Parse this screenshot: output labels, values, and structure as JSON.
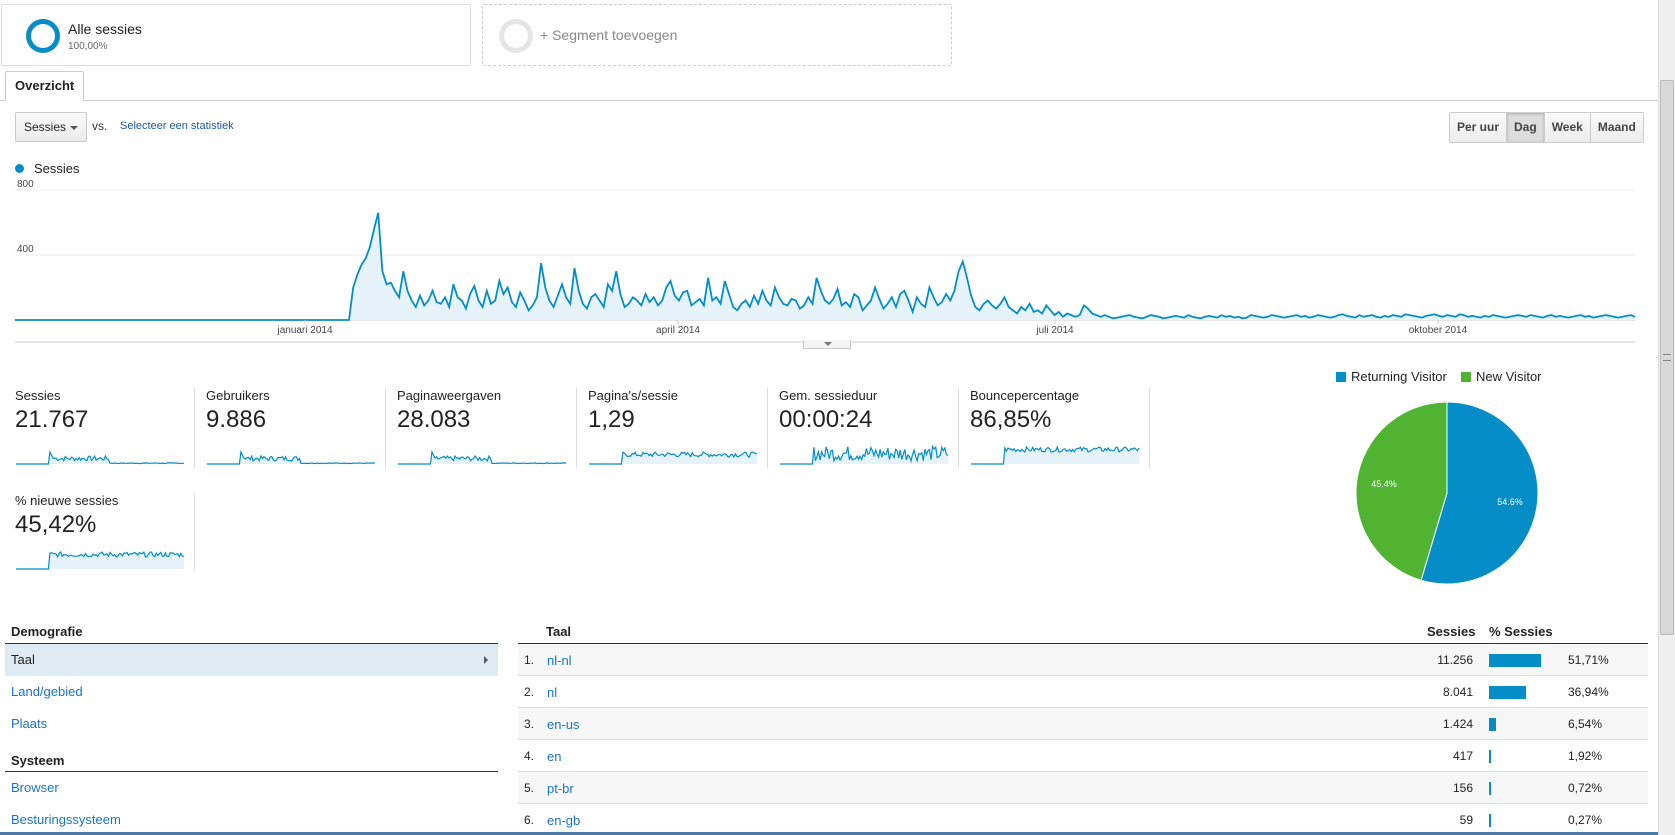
{
  "segments": {
    "main": {
      "title": "Alle sessies",
      "sub": "100,00%"
    },
    "add": {
      "label": "+ Segment toevoegen"
    }
  },
  "tabs": {
    "overview": "Overzicht"
  },
  "controls": {
    "metric_select": "Sessies",
    "vs": "vs.",
    "select_stat": "Selecteer een statistiek",
    "granularity": [
      "Per uur",
      "Dag",
      "Week",
      "Maand"
    ],
    "granularity_active": "Dag"
  },
  "colors": {
    "accent": "#058dc7",
    "returning": "#058dc7",
    "new": "#50b432"
  },
  "chart_data": {
    "type": "area",
    "legend": "Sessies",
    "y_ticks": [
      "800",
      "400"
    ],
    "ylim": [
      0,
      800
    ],
    "x_labels": [
      "januari 2014",
      "april 2014",
      "juli 2014",
      "oktober 2014"
    ],
    "series": [
      {
        "name": "Sessies",
        "values": [
          0,
          0,
          0,
          0,
          0,
          0,
          0,
          0,
          0,
          0,
          0,
          0,
          0,
          0,
          0,
          0,
          0,
          0,
          0,
          0,
          0,
          0,
          0,
          0,
          0,
          0,
          0,
          0,
          0,
          0,
          0,
          0,
          0,
          0,
          0,
          0,
          0,
          0,
          0,
          0,
          0,
          0,
          0,
          0,
          0,
          0,
          0,
          0,
          0,
          0,
          0,
          0,
          0,
          0,
          0,
          0,
          0,
          0,
          0,
          0,
          0,
          0,
          0,
          0,
          0,
          0,
          0,
          0,
          0,
          0,
          0,
          0,
          0,
          0,
          0,
          0,
          0,
          0,
          0,
          0,
          0,
          200,
          280,
          340,
          380,
          450,
          560,
          660,
          300,
          220,
          230,
          180,
          140,
          300,
          180,
          120,
          80,
          150,
          90,
          120,
          180,
          110,
          100,
          140,
          80,
          220,
          140,
          120,
          70,
          160,
          210,
          120,
          80,
          180,
          100,
          120,
          240,
          160,
          200,
          110,
          80,
          170,
          120,
          60,
          90,
          140,
          350,
          200,
          120,
          80,
          150,
          220,
          140,
          100,
          320,
          180,
          100,
          70,
          140,
          160,
          120,
          80,
          220,
          180,
          300,
          160,
          80,
          100,
          140,
          120,
          90,
          160,
          110,
          140,
          90,
          120,
          200,
          240,
          150,
          120,
          170,
          180,
          90,
          110,
          130,
          90,
          260,
          120,
          140,
          100,
          240,
          160,
          80,
          60,
          100,
          120,
          80,
          150,
          100,
          180,
          120,
          90,
          200,
          140,
          100,
          90,
          130,
          120,
          70,
          90,
          140,
          100,
          260,
          180,
          120,
          100,
          130,
          190,
          90,
          110,
          80,
          160,
          140,
          60,
          90,
          120,
          200,
          130,
          70,
          100,
          140,
          80,
          160,
          180,
          120,
          50,
          140,
          100,
          80,
          200,
          140,
          90,
          110,
          160,
          120,
          180,
          300,
          360,
          260,
          150,
          80,
          60,
          100,
          120,
          90,
          70,
          100,
          140,
          80,
          60,
          40,
          80,
          60,
          100,
          50,
          60,
          40,
          90,
          60,
          30,
          50,
          20,
          40,
          30,
          20,
          30,
          90,
          70,
          40,
          30,
          20,
          30,
          20,
          10,
          15,
          20,
          25,
          30,
          20,
          15,
          10,
          20,
          30,
          25,
          20,
          10,
          15,
          20,
          25,
          20,
          15,
          30,
          20,
          15,
          10,
          20,
          25,
          20,
          15,
          30,
          20,
          25,
          15,
          20,
          10,
          15,
          30,
          25,
          20,
          15,
          20,
          30,
          25,
          20,
          15,
          20,
          25,
          30,
          20,
          25,
          15,
          20,
          30,
          25,
          20,
          15,
          20,
          30,
          35,
          25,
          20,
          15,
          30,
          20,
          25,
          30,
          20,
          15,
          25,
          20,
          30,
          25,
          20,
          35,
          30,
          25,
          20,
          15,
          25,
          30,
          35,
          25,
          20,
          30,
          25,
          20,
          35,
          30,
          20,
          25,
          20,
          15,
          25,
          20,
          30,
          25,
          20,
          15,
          20,
          25,
          30,
          25,
          20,
          30,
          25,
          20,
          15,
          25,
          30,
          20,
          25,
          20,
          15,
          20,
          25,
          30,
          20,
          25,
          15,
          20,
          25,
          30,
          25,
          20,
          15,
          20,
          25,
          30,
          20
        ]
      }
    ]
  },
  "metrics": [
    {
      "label": "Sessies",
      "value": "21.767",
      "kind": "spike"
    },
    {
      "label": "Gebruikers",
      "value": "9.886",
      "kind": "spike"
    },
    {
      "label": "Paginaweergaven",
      "value": "28.083",
      "kind": "spike"
    },
    {
      "label": "Pagina's/sessie",
      "value": "1,29",
      "kind": "step"
    },
    {
      "label": "Gem. sessieduur",
      "value": "00:00:24",
      "kind": "noisy"
    },
    {
      "label": "Bouncepercentage",
      "value": "86,85%",
      "kind": "stephigh"
    },
    {
      "label": "% nieuwe sessies",
      "value": "45,42%",
      "kind": "stephigh"
    }
  ],
  "pie": {
    "legend": [
      "Returning Visitor",
      "New Visitor"
    ],
    "values": [
      54.6,
      45.4
    ],
    "labels": [
      "54.6%",
      "45.4%"
    ]
  },
  "nav": {
    "demografie": "Demografie",
    "demografie_items": [
      "Taal",
      "Land/gebied",
      "Plaats"
    ],
    "systeem": "Systeem",
    "systeem_items": [
      "Browser",
      "Besturingssysteem"
    ]
  },
  "table": {
    "col_dim": "Taal",
    "col_sess": "Sessies",
    "col_pct": "% Sessies",
    "rows": [
      {
        "idx": "1.",
        "lang": "nl-nl",
        "sess": "11.256",
        "pct": "51,71%",
        "share": 51.71
      },
      {
        "idx": "2.",
        "lang": "nl",
        "sess": "8.041",
        "pct": "36,94%",
        "share": 36.94
      },
      {
        "idx": "3.",
        "lang": "en-us",
        "sess": "1.424",
        "pct": "6,54%",
        "share": 6.54
      },
      {
        "idx": "4.",
        "lang": "en",
        "sess": "417",
        "pct": "1,92%",
        "share": 1.92
      },
      {
        "idx": "5.",
        "lang": "pt-br",
        "sess": "156",
        "pct": "0,72%",
        "share": 0.72
      },
      {
        "idx": "6.",
        "lang": "en-gb",
        "sess": "59",
        "pct": "0,27%",
        "share": 0.27
      }
    ]
  }
}
